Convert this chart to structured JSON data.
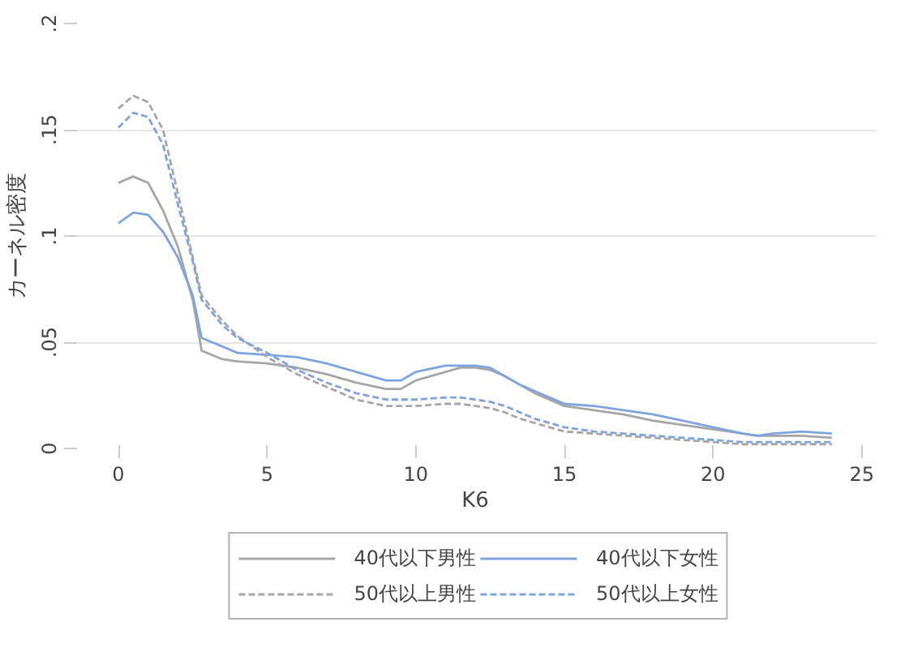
{
  "chart_data": {
    "type": "line",
    "xlabel": "K6",
    "ylabel": "カーネル密度",
    "xlim": [
      -1.5,
      25.5
    ],
    "xticks": [
      0,
      5,
      10,
      15,
      20,
      25
    ],
    "ylim": [
      0,
      0.2
    ],
    "yticks": [
      0,
      {
        "value": 0.05,
        "label": ".05"
      },
      {
        "value": 0.1,
        "label": ".1"
      },
      {
        "value": 0.15,
        "label": ".15"
      },
      {
        "value": 0.2,
        "label": ".2"
      }
    ],
    "grid": "y",
    "legend": "bottom",
    "x": [
      0,
      0.5,
      1,
      1.5,
      2,
      2.5,
      2.8,
      3.5,
      4,
      5,
      6,
      7,
      8,
      9,
      9.5,
      10,
      11,
      11.5,
      12,
      12.5,
      13,
      13.5,
      14,
      15,
      16,
      17,
      18,
      19,
      20,
      21,
      21.5,
      22,
      23,
      24
    ],
    "series": [
      {
        "name": "40代以下男性",
        "color": "#a6a6a6",
        "line_style": "solid",
        "values": [
          0.125,
          0.128,
          0.125,
          0.112,
          0.095,
          0.07,
          0.046,
          0.042,
          0.041,
          0.04,
          0.038,
          0.035,
          0.031,
          0.028,
          0.028,
          0.032,
          0.036,
          0.038,
          0.038,
          0.037,
          0.034,
          0.03,
          0.026,
          0.02,
          0.018,
          0.016,
          0.013,
          0.011,
          0.009,
          0.007,
          0.006,
          0.006,
          0.006,
          0.005
        ]
      },
      {
        "name": "40代以下女性",
        "color": "#7fa3de",
        "line_style": "solid",
        "values": [
          0.106,
          0.111,
          0.11,
          0.102,
          0.09,
          0.072,
          0.052,
          0.048,
          0.045,
          0.044,
          0.043,
          0.04,
          0.036,
          0.032,
          0.032,
          0.036,
          0.039,
          0.039,
          0.039,
          0.038,
          0.034,
          0.03,
          0.027,
          0.021,
          0.02,
          0.018,
          0.016,
          0.013,
          0.01,
          0.007,
          0.006,
          0.007,
          0.008,
          0.007
        ]
      },
      {
        "name": "50代以上男性",
        "color": "#a6a6a6",
        "line_style": "dashed",
        "values": [
          0.16,
          0.166,
          0.163,
          0.15,
          0.12,
          0.09,
          0.072,
          0.06,
          0.053,
          0.043,
          0.035,
          0.029,
          0.023,
          0.02,
          0.02,
          0.02,
          0.021,
          0.021,
          0.02,
          0.019,
          0.017,
          0.014,
          0.012,
          0.008,
          0.007,
          0.006,
          0.005,
          0.004,
          0.003,
          0.002,
          0.002,
          0.002,
          0.002,
          0.002
        ]
      },
      {
        "name": "50代以上女性",
        "color": "#7fa3de",
        "line_style": "dashed",
        "values": [
          0.151,
          0.158,
          0.156,
          0.143,
          0.115,
          0.088,
          0.07,
          0.058,
          0.052,
          0.045,
          0.037,
          0.031,
          0.026,
          0.023,
          0.023,
          0.023,
          0.024,
          0.024,
          0.023,
          0.022,
          0.02,
          0.017,
          0.014,
          0.01,
          0.008,
          0.007,
          0.006,
          0.005,
          0.004,
          0.003,
          0.003,
          0.003,
          0.003,
          0.003
        ]
      }
    ]
  }
}
